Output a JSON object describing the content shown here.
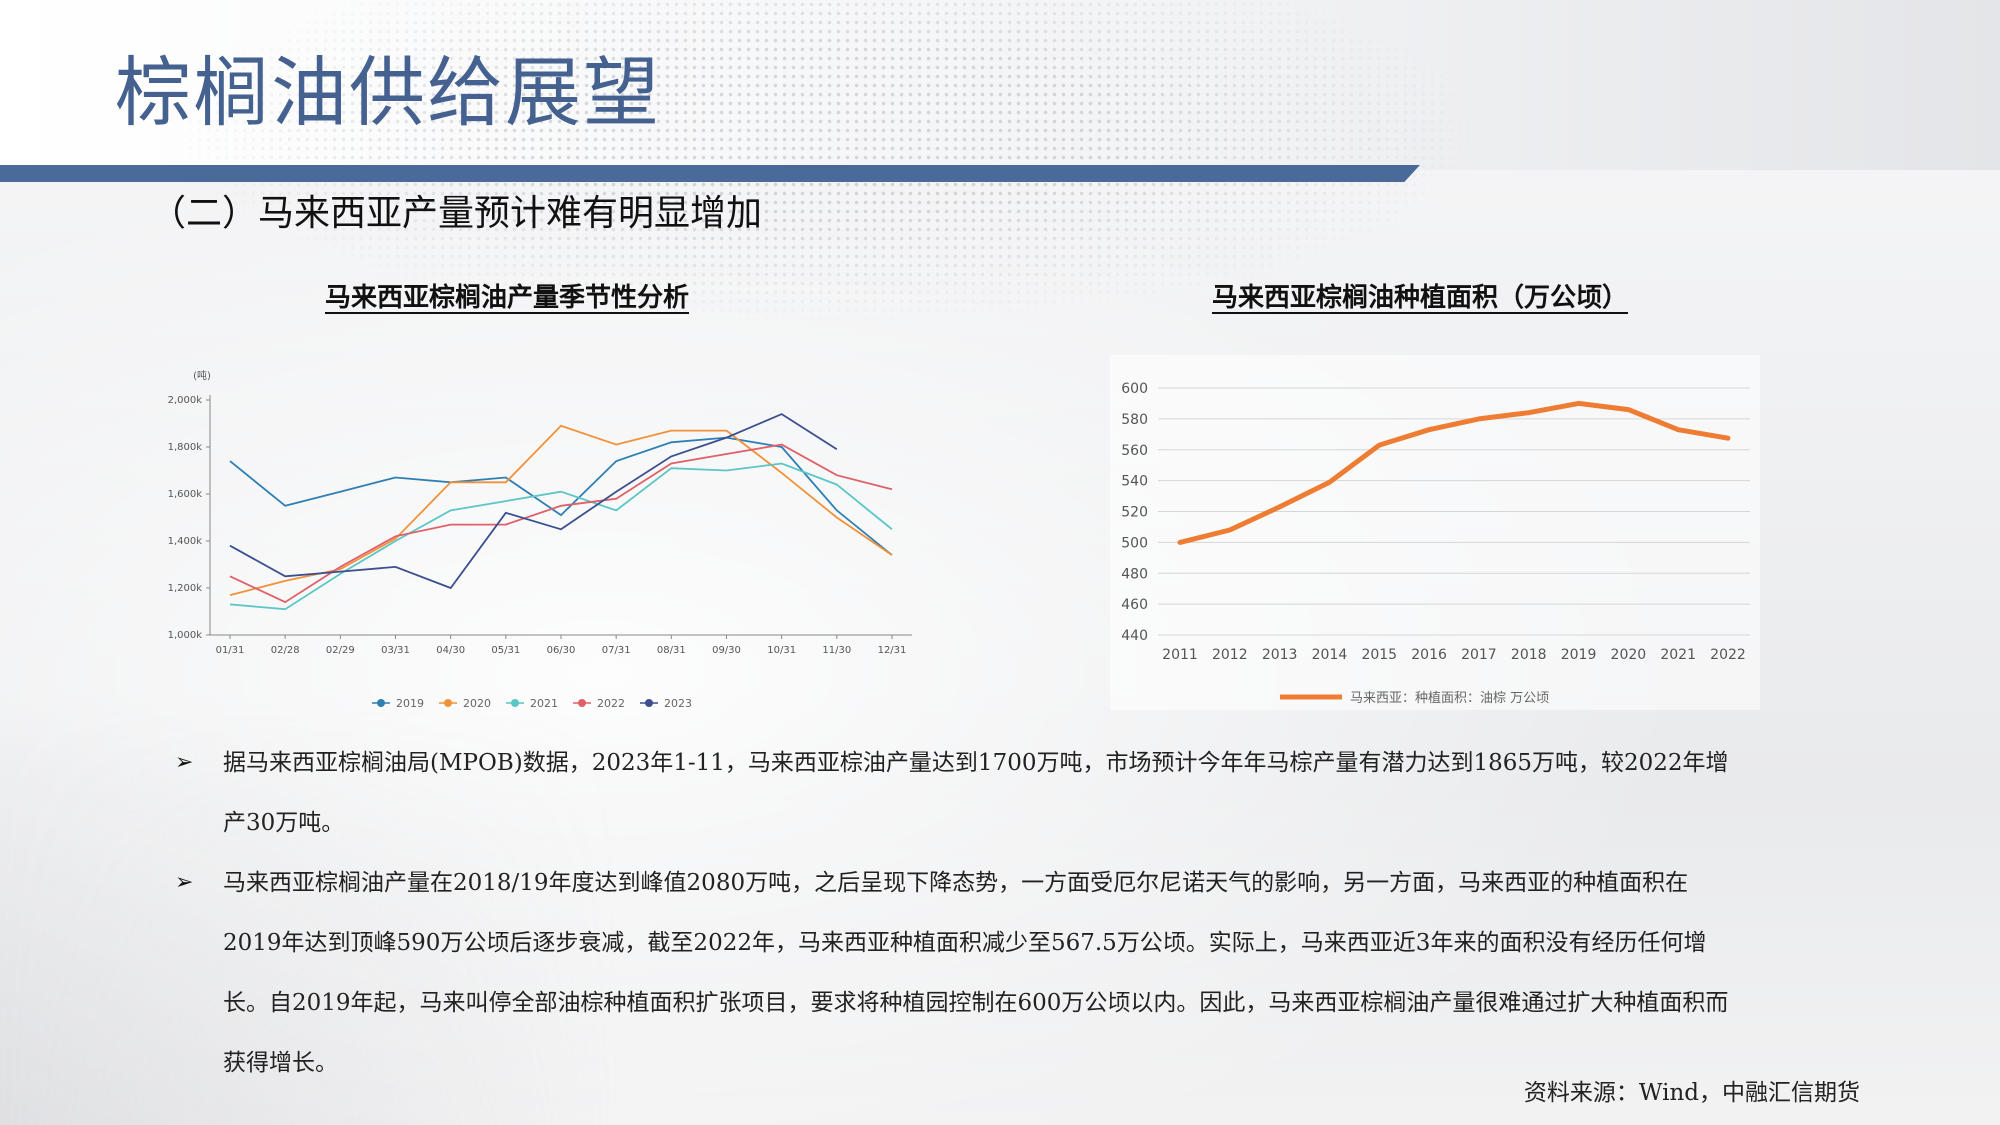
{
  "header": {
    "title": "棕榈油供给展望"
  },
  "section": {
    "heading": "（二）马来西亚产量预计难有明显增加"
  },
  "charts": [
    {
      "type": "line",
      "title": "马来西亚棕榈油产量季节性分析",
      "ylabel": "(吨)",
      "categories": [
        "01/31",
        "02/28",
        "02/29",
        "03/31",
        "04/30",
        "05/31",
        "06/30",
        "07/31",
        "08/31",
        "09/30",
        "10/31",
        "11/30",
        "12/31"
      ],
      "ylim": [
        1000000,
        2000000
      ],
      "yticks": [
        1000000,
        1200000,
        1400000,
        1600000,
        1800000,
        2000000
      ],
      "ytick_labels": [
        "1,000k",
        "1,200k",
        "1,400k",
        "1,600k",
        "1,800k",
        "2,000k"
      ],
      "legend": "bottom",
      "series": [
        {
          "name": "2019",
          "color": "#2e7fb4",
          "values": [
            1740000,
            1550000,
            1610000,
            1670000,
            1650000,
            1670000,
            1510000,
            1740000,
            1820000,
            1840000,
            1800000,
            1530000,
            1340000
          ]
        },
        {
          "name": "2020",
          "color": "#f0923a",
          "values": [
            1170000,
            1230000,
            1280000,
            1410000,
            1650000,
            1650000,
            1890000,
            1810000,
            1870000,
            1870000,
            1690000,
            1500000,
            1340000
          ]
        },
        {
          "name": "2021",
          "color": "#5cc5c5",
          "values": [
            1130000,
            1110000,
            1260000,
            1400000,
            1530000,
            1570000,
            1610000,
            1530000,
            1710000,
            1700000,
            1730000,
            1640000,
            1450000
          ]
        },
        {
          "name": "2022",
          "color": "#e06068",
          "values": [
            1250000,
            1140000,
            1290000,
            1420000,
            1470000,
            1470000,
            1550000,
            1580000,
            1730000,
            1770000,
            1810000,
            1680000,
            1620000
          ]
        },
        {
          "name": "2023",
          "color": "#3c4f8e",
          "values": [
            1380000,
            1250000,
            1270000,
            1290000,
            1200000,
            1520000,
            1450000,
            1610000,
            1760000,
            1840000,
            1940000,
            1790000,
            null
          ]
        }
      ]
    },
    {
      "type": "line",
      "title": "马来西亚棕榈油种植面积（万公顷）",
      "categories": [
        "2011",
        "2012",
        "2013",
        "2014",
        "2015",
        "2016",
        "2017",
        "2018",
        "2019",
        "2020",
        "2021",
        "2022"
      ],
      "ylim": [
        440,
        600
      ],
      "yticks": [
        440,
        460,
        480,
        500,
        520,
        540,
        560,
        580,
        600
      ],
      "legend": "bottom",
      "series": [
        {
          "name": "马来西亚：种植面积：油棕  万公顷",
          "color": "#ee7d33",
          "values": [
            500,
            508,
            523,
            539,
            563,
            573,
            580,
            584,
            590,
            586,
            573,
            567.5
          ]
        }
      ]
    }
  ],
  "bullets": [
    "据马来西亚棕榈油局(MPOB)数据，2023年1-11，马来西亚棕油产量达到1700万吨，市场预计今年年马棕产量有潜力达到1865万吨，较2022年增产30万吨。",
    "马来西亚棕榈油产量在2018/19年度达到峰值2080万吨，之后呈现下降态势，一方面受厄尔尼诺天气的影响，另一方面，马来西亚的种植面积在2019年达到顶峰590万公顷后逐步衰减，截至2022年，马来西亚种植面积减少至567.5万公顷。实际上，马来西亚近3年来的面积没有经历任何增长。自2019年起，马来叫停全部油棕种植面积扩张项目，要求将种植园控制在600万公顷以内。因此，马来西亚棕榈油产量很难通过扩大种植面积而获得增长。"
  ],
  "bullet_marker": "➢",
  "source": "资料来源：Wind，中融汇信期货"
}
